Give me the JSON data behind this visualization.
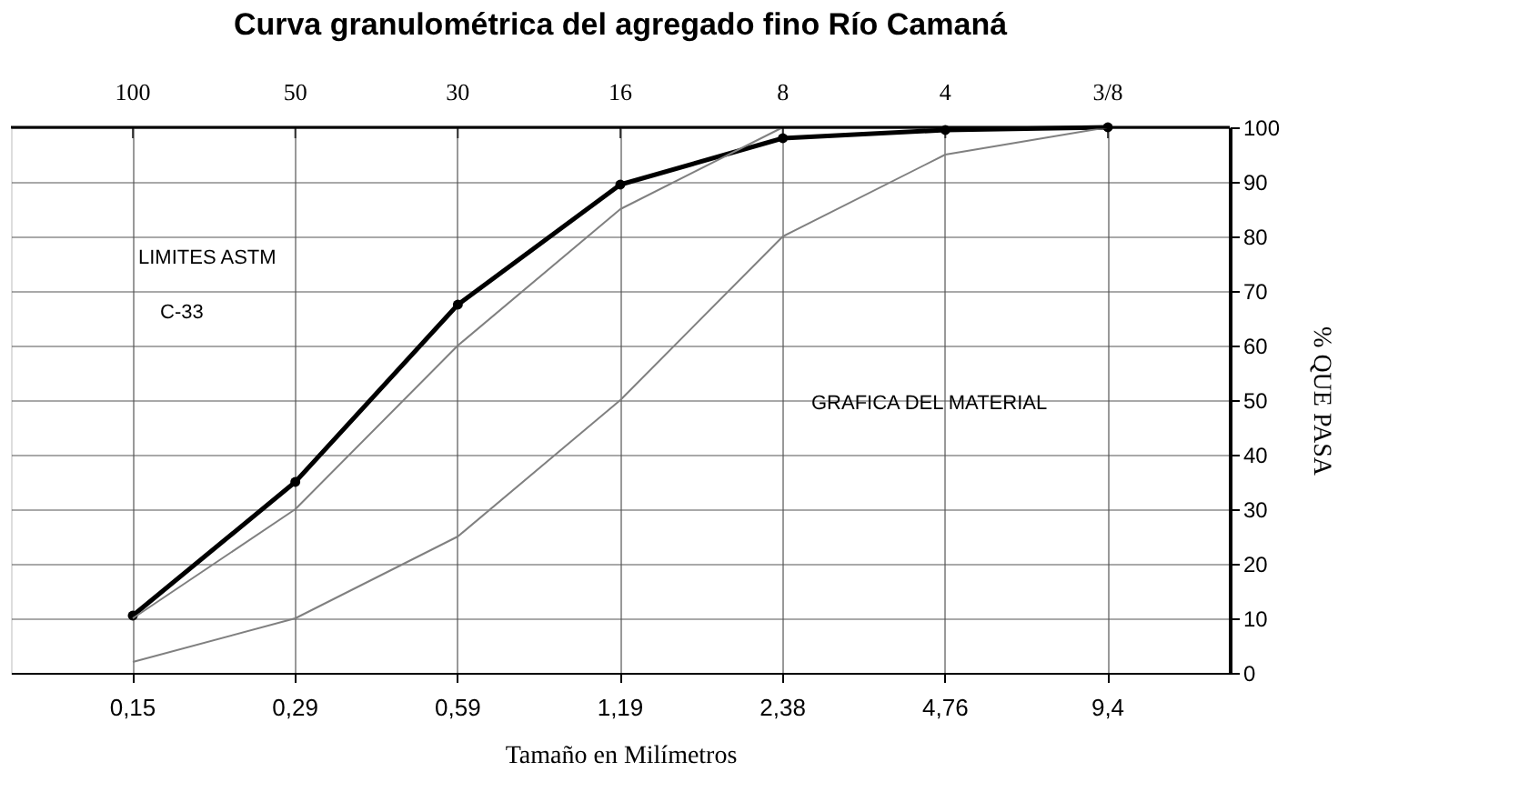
{
  "chart_data": {
    "type": "line",
    "title": "Curva granulométrica del agregado fino Río Camaná",
    "xlabel": "Tamaño en Milímetros",
    "ylabel": "% QUE PASA",
    "categories": [
      "0,15",
      "0,29",
      "0,59",
      "1,19",
      "2,38",
      "4,76",
      "9,4"
    ],
    "series": [
      {
        "color": "#000000",
        "marker": "circle",
        "values": [
          10.5,
          35,
          67.5,
          89.5,
          98,
          99.5,
          100
        ]
      },
      {
        "color": "#808080",
        "marker": "none",
        "values": [
          10,
          30,
          60,
          85,
          100,
          100,
          100
        ]
      },
      {
        "color": "#808080",
        "marker": "none",
        "values": [
          2,
          10,
          25,
          50,
          80,
          95,
          100
        ]
      }
    ],
    "ylim": [
      0,
      100
    ],
    "yticks": [
      0,
      10,
      20,
      30,
      40,
      50,
      60,
      70,
      80,
      90,
      100
    ],
    "grid": true,
    "annotations": [
      "100",
      "50",
      "30",
      "16",
      "8",
      "4",
      "3/8",
      "LIMITES ASTM",
      "C-33",
      "GRAFICA DEL MATERIAL"
    ]
  }
}
